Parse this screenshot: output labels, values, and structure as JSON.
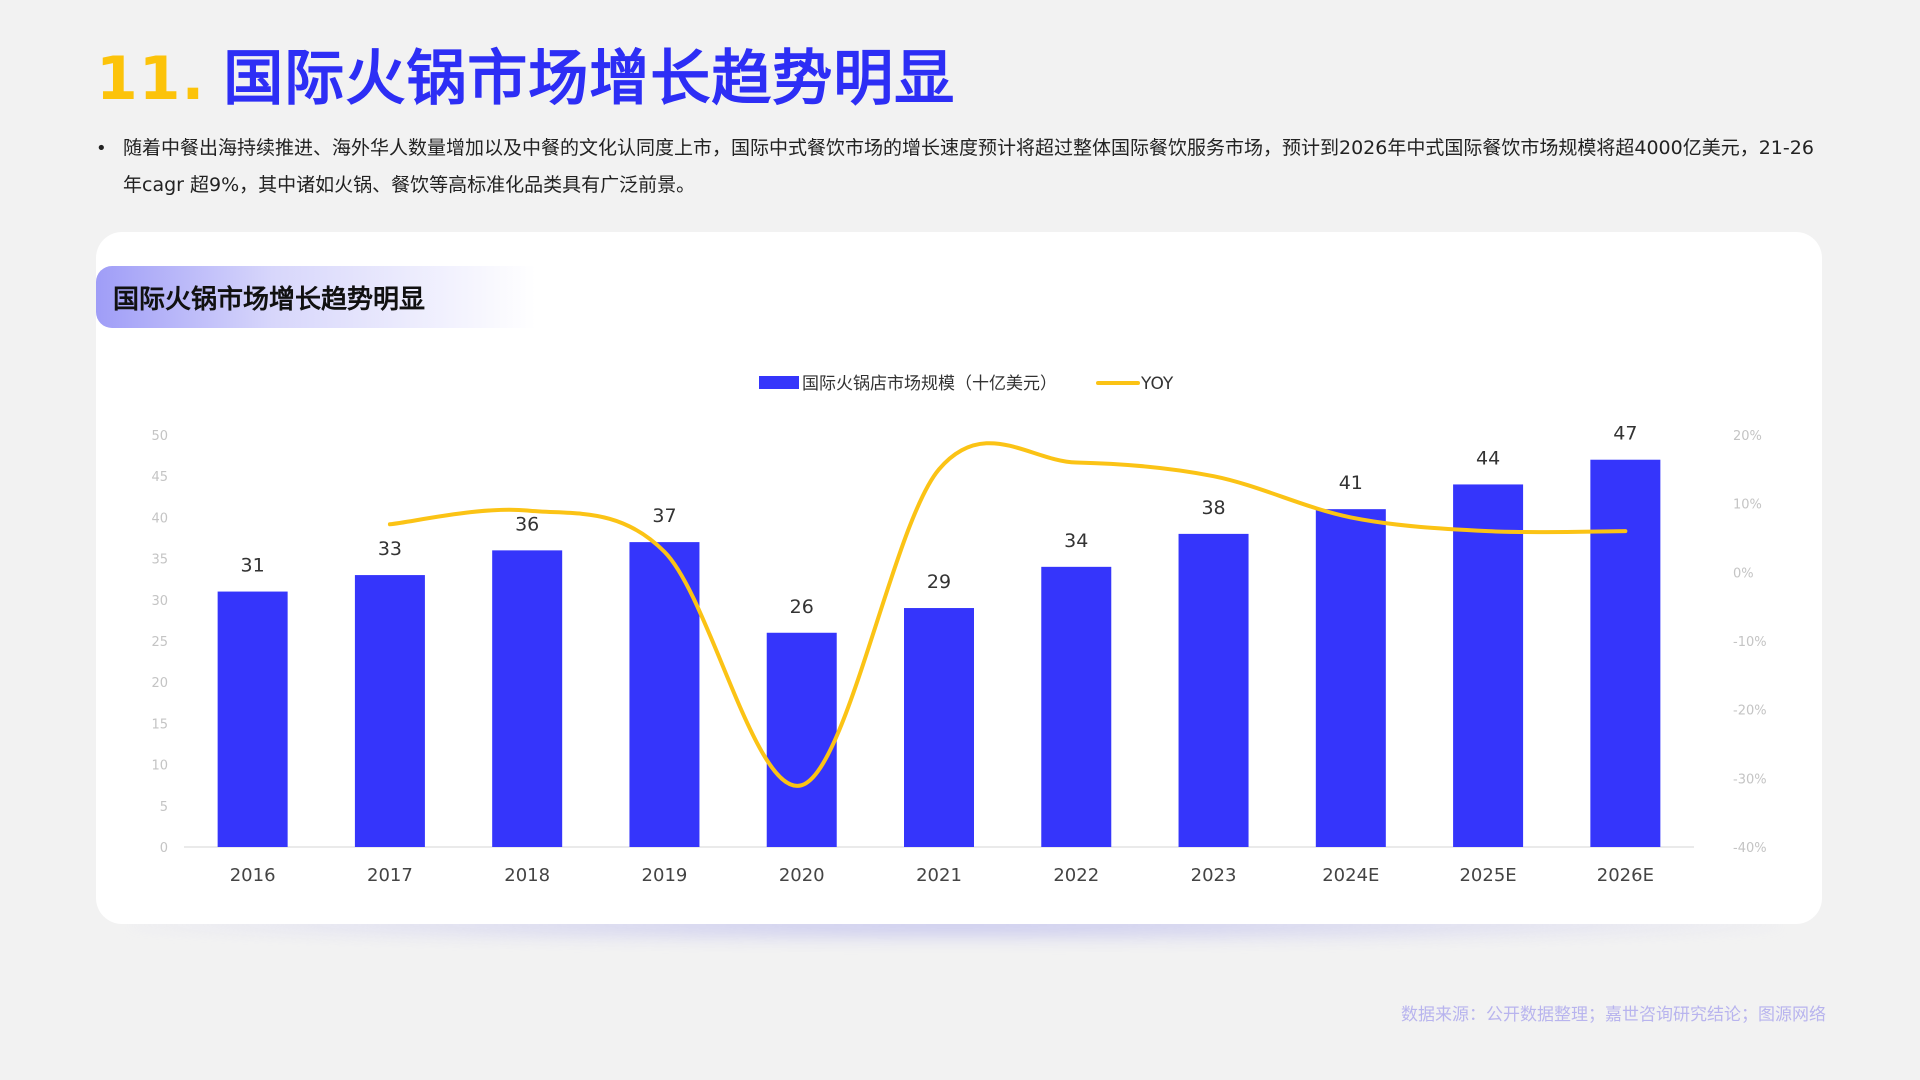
{
  "page": {
    "number": "11.",
    "title": "国际火锅市场增长趋势明显",
    "bullet_marker": "•",
    "bullet": "随着中餐出海持续推进、海外华人数量增加以及中餐的文化认同度上市，国际中式餐饮市场的增长速度预计将超过整体国际餐饮服务市场，预计到2026年中式国际餐饮市场规模将超4000亿美元，21-26年cagr 超9%，其中诸如火锅、餐饮等高标准化品类具有广泛前景。",
    "source": "数据来源：公开数据整理；嘉世咨询研究结论；图源网络"
  },
  "colors": {
    "bar": "#3535fb",
    "line": "#fbc315",
    "axis_text": "#c4c4c4",
    "category_text": "#444444",
    "label_text": "#333333"
  },
  "chart_data": {
    "type": "bar",
    "title": "国际火锅市场增长趋势明显",
    "categories": [
      "2016",
      "2017",
      "2018",
      "2019",
      "2020",
      "2021",
      "2022",
      "2023",
      "2024E",
      "2025E",
      "2026E"
    ],
    "series": [
      {
        "name": "国际火锅店市场规模（十亿美元）",
        "type": "bar",
        "axis": "left",
        "values": [
          31,
          33,
          36,
          37,
          26,
          29,
          34,
          38,
          41,
          44,
          47
        ],
        "labels": [
          "31",
          "33",
          "36",
          "37",
          "26",
          "29",
          "34",
          "38",
          "41",
          "44",
          "47"
        ]
      },
      {
        "name": "YOY",
        "type": "line",
        "axis": "right",
        "values": [
          null,
          7,
          9,
          3,
          -31,
          15,
          16,
          14,
          8,
          6,
          6
        ]
      }
    ],
    "y_left": {
      "ylim": [
        0,
        50
      ],
      "ticks": [
        "0",
        "5",
        "10",
        "15",
        "20",
        "25",
        "30",
        "35",
        "40",
        "45",
        "50"
      ]
    },
    "y_right": {
      "ylim": [
        -40,
        20
      ],
      "ticks": [
        "-40%",
        "-30%",
        "-20%",
        "-10%",
        "0%",
        "10%",
        "20%"
      ]
    },
    "legend": {
      "position": "top-center",
      "items": [
        "国际火锅店市场规模（十亿美元）",
        "YOY"
      ]
    },
    "grid": false
  }
}
